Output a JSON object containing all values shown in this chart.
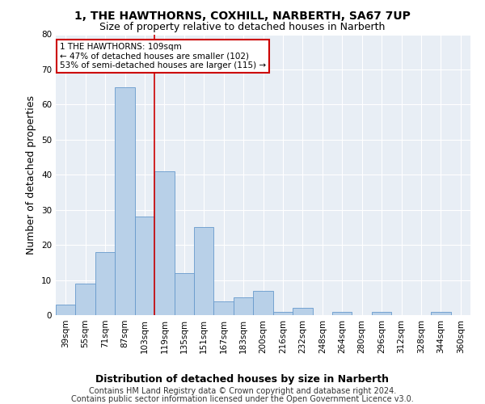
{
  "title": "1, THE HAWTHORNS, COXHILL, NARBERTH, SA67 7UP",
  "subtitle": "Size of property relative to detached houses in Narberth",
  "xlabel": "Distribution of detached houses by size in Narberth",
  "ylabel": "Number of detached properties",
  "categories": [
    "39sqm",
    "55sqm",
    "71sqm",
    "87sqm",
    "103sqm",
    "119sqm",
    "135sqm",
    "151sqm",
    "167sqm",
    "183sqm",
    "200sqm",
    "216sqm",
    "232sqm",
    "248sqm",
    "264sqm",
    "280sqm",
    "296sqm",
    "312sqm",
    "328sqm",
    "344sqm",
    "360sqm"
  ],
  "values": [
    3,
    9,
    18,
    65,
    28,
    41,
    12,
    25,
    4,
    5,
    7,
    1,
    2,
    0,
    1,
    0,
    1,
    0,
    0,
    1,
    0
  ],
  "bar_color": "#b8d0e8",
  "bar_edge_color": "#6699cc",
  "ylim": [
    0,
    80
  ],
  "yticks": [
    0,
    10,
    20,
    30,
    40,
    50,
    60,
    70,
    80
  ],
  "vline_x": 4.5,
  "vline_color": "#cc0000",
  "annotation_text": "1 THE HAWTHORNS: 109sqm\n← 47% of detached houses are smaller (102)\n53% of semi-detached houses are larger (115) →",
  "annotation_box_color": "#ffffff",
  "annotation_box_edge": "#cc0000",
  "footnote1": "Contains HM Land Registry data © Crown copyright and database right 2024.",
  "footnote2": "Contains public sector information licensed under the Open Government Licence v3.0.",
  "plot_bg_color": "#e8eef5",
  "title_fontsize": 10,
  "subtitle_fontsize": 9,
  "axis_label_fontsize": 9,
  "tick_fontsize": 7.5,
  "footnote_fontsize": 7
}
